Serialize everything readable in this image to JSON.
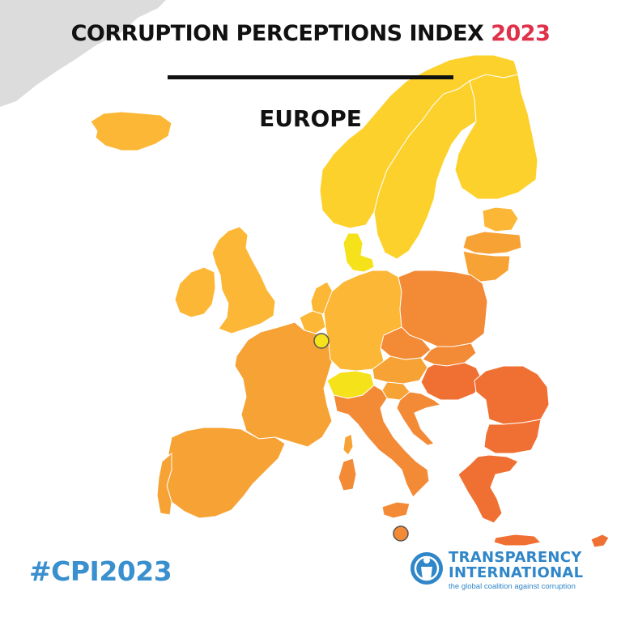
{
  "title": {
    "text": "CORRUPTION PERCEPTIONS INDEX",
    "year": "2023",
    "year_color": "#e0314b"
  },
  "subtitle": "EUROPE",
  "hashtag": "#CPI2023",
  "logo": {
    "line1": "TRANSPARENCY",
    "line2": "INTERNATIONAL",
    "tagline": "the global coalition against corruption",
    "color": "#2f86c8",
    "icon": "transparency-international-globe-icon"
  },
  "map": {
    "region": "Europe",
    "colors": {
      "sea": "#ffffff",
      "outside_land": "#dcdcdc",
      "light_yellow": "#f6e21a",
      "yellow": "#fdd12b",
      "yellow_orange": "#fbb735",
      "orange": "#f7a234",
      "dark_orange": "#f38a36",
      "red_orange": "#ef7032",
      "border": "#ffffff"
    },
    "small_states": [
      "Luxembourg",
      "Malta"
    ]
  }
}
